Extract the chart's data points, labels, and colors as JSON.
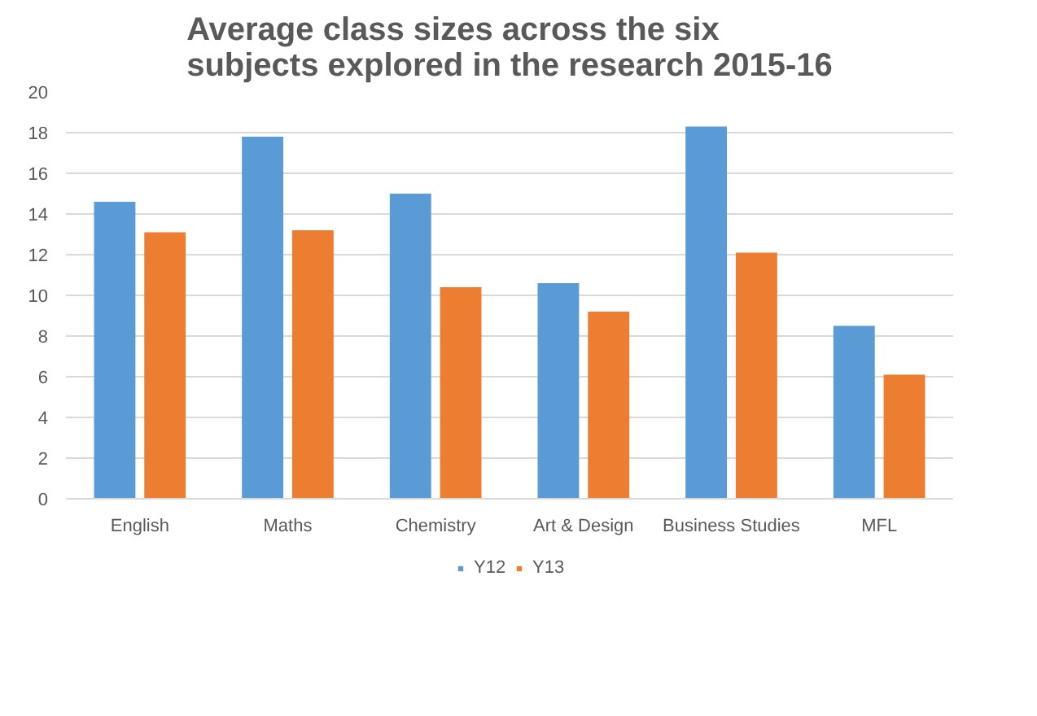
{
  "chart_data": {
    "type": "bar",
    "title": "Average class sizes across the six subjects explored in the research 2015-16",
    "categories": [
      "English",
      "Maths",
      "Chemistry",
      "Art & Design",
      "Business Studies",
      "MFL"
    ],
    "series": [
      {
        "name": "Y12",
        "color": "#5b9bd5",
        "values": [
          14.6,
          17.8,
          15.0,
          10.6,
          18.3,
          8.5
        ]
      },
      {
        "name": "Y13",
        "color": "#ed7d31",
        "values": [
          13.1,
          13.2,
          10.4,
          9.2,
          12.1,
          6.1
        ]
      }
    ],
    "ylim": [
      0,
      20
    ],
    "yticks": [
      0,
      2,
      4,
      6,
      8,
      10,
      12,
      14,
      16,
      18,
      20
    ],
    "grid": "y",
    "legend": "bottom"
  }
}
